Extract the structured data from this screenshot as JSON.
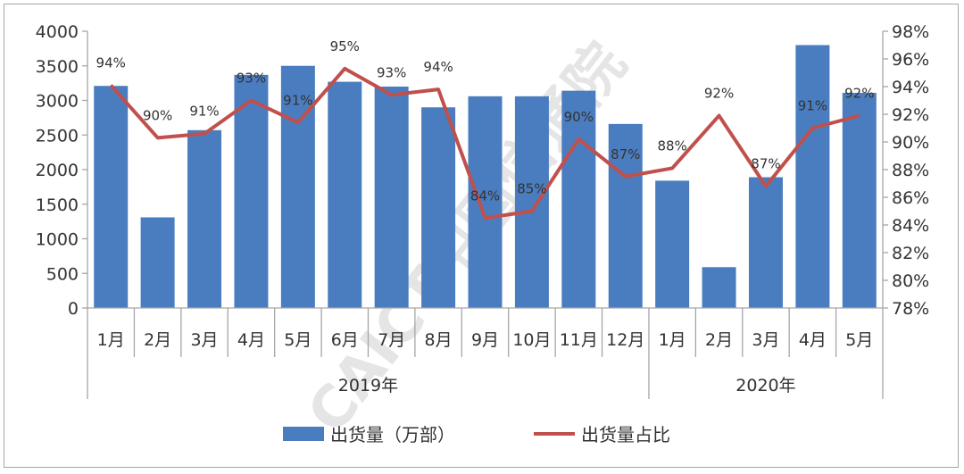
{
  "chart_data": {
    "type": "bar+line",
    "categories": [
      "1月",
      "2月",
      "3月",
      "4月",
      "5月",
      "6月",
      "7月",
      "8月",
      "9月",
      "10月",
      "11月",
      "12月",
      "1月",
      "2月",
      "3月",
      "4月",
      "5月"
    ],
    "groups": [
      {
        "label": "2019年",
        "count": 12
      },
      {
        "label": "2020年",
        "count": 5
      }
    ],
    "series": [
      {
        "name": "出货量（万部）",
        "type": "bar",
        "axis": "left",
        "color": "#4a7dbf",
        "values": [
          3210,
          1310,
          2570,
          3370,
          3500,
          3270,
          3200,
          2900,
          3060,
          3060,
          3140,
          2660,
          1840,
          590,
          1890,
          3800,
          3110
        ]
      },
      {
        "name": "出货量占比",
        "type": "line",
        "axis": "right",
        "color": "#c0504d",
        "values": [
          94.1,
          90.3,
          90.6,
          93.0,
          91.4,
          95.3,
          93.4,
          93.8,
          84.5,
          85.0,
          90.2,
          87.5,
          88.1,
          91.9,
          86.8,
          91.0,
          91.9
        ],
        "labels": [
          "94%",
          "90%",
          "91%",
          "93%",
          "91%",
          "95%",
          "93%",
          "94%",
          "84%",
          "85%",
          "90%",
          "87%",
          "88%",
          "92%",
          "87%",
          "91%",
          "92%"
        ]
      }
    ],
    "y_left": {
      "min": 0,
      "max": 4000,
      "step": 500,
      "ticks": [
        "0",
        "500",
        "1000",
        "1500",
        "2000",
        "2500",
        "3000",
        "3500",
        "4000"
      ]
    },
    "y_right": {
      "min": 78,
      "max": 98,
      "step": 2,
      "ticks": [
        "78%",
        "80%",
        "82%",
        "84%",
        "86%",
        "88%",
        "90%",
        "92%",
        "94%",
        "96%",
        "98%"
      ]
    },
    "legend": {
      "position": "bottom"
    },
    "grid": false
  },
  "watermark": "CAICT中国信通院"
}
